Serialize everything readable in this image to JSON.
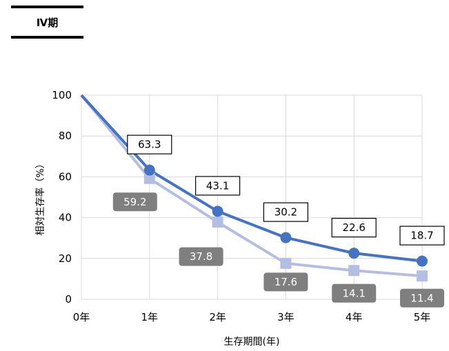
{
  "header": {
    "title": "Ⅳ期"
  },
  "colors": {
    "series1": "#4472C4",
    "series2": "#B4BEE2",
    "grid": "#D9D9D9",
    "label_box_dark": "#7F7F7F"
  },
  "chart_data": {
    "type": "line",
    "title": "",
    "xlabel": "生存期間(年)",
    "ylabel": "相対生存率（%）",
    "categories": [
      "0年",
      "1年",
      "2年",
      "3年",
      "4年",
      "5年"
    ],
    "ylim": [
      0,
      100
    ],
    "yticks": [
      0,
      20,
      40,
      60,
      80,
      100
    ],
    "grid": true,
    "series": [
      {
        "marker": "circle",
        "values": [
          100,
          63.3,
          43.1,
          30.2,
          22.6,
          18.7
        ],
        "labels": [
          "",
          "63.3",
          "43.1",
          "30.2",
          "22.6",
          "18.7"
        ]
      },
      {
        "marker": "square",
        "values": [
          100,
          59.2,
          37.8,
          17.6,
          14.1,
          11.4
        ],
        "labels": [
          "",
          "59.2",
          "37.8",
          "17.6",
          "14.1",
          "11.4"
        ]
      }
    ]
  }
}
